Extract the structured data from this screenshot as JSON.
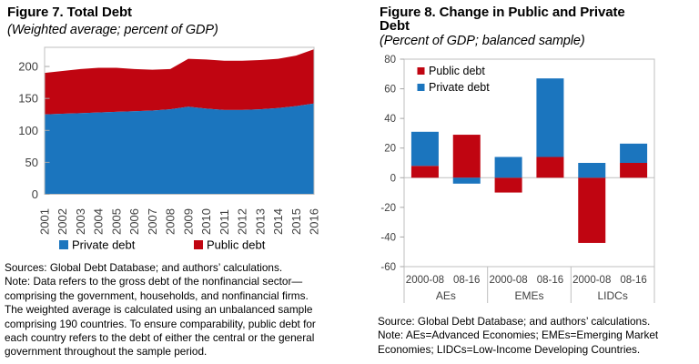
{
  "chart_data": [
    {
      "id": "figure7",
      "type": "area",
      "stacked": true,
      "title": "Figure 7. Total Debt",
      "subtitle": "(Weighted average; percent of GDP)",
      "x": [
        "2001",
        "2002",
        "2003",
        "2004",
        "2005",
        "2006",
        "2007",
        "2008",
        "2009",
        "2010",
        "2011",
        "2012",
        "2013",
        "2014",
        "2015",
        "2016"
      ],
      "series": [
        {
          "name": "Private debt",
          "color": "#1B75BE",
          "values": [
            125,
            126,
            127,
            128,
            129,
            130,
            131,
            133,
            137,
            134,
            132,
            132,
            133,
            135,
            138,
            142
          ]
        },
        {
          "name": "Public debt",
          "color": "#C00511",
          "values": [
            65,
            67,
            69,
            70,
            69,
            66,
            64,
            63,
            75,
            77,
            77,
            77,
            77,
            77,
            79,
            85
          ]
        }
      ],
      "ylim": [
        0,
        230
      ],
      "yticks": [
        0,
        50,
        100,
        150,
        200
      ],
      "grid": false,
      "legend_position": "bottom",
      "source_note": "Sources: Global Debt Database; and authors’ calculations.\nNote: Data refers to the gross debt of the nonfinancial sector—\ncomprising the government, households, and nonfinancial firms.\nThe weighted average is calculated using an unbalanced sample\ncomprising 190 countries. To ensure comparability, public debt for\neach country refers to the debt of either the central or the general\ngovernment throughout the sample period."
    },
    {
      "id": "figure8",
      "type": "bar",
      "stacked": true,
      "title": "Figure 8. Change in Public and Private\nDebt",
      "subtitle": "(Percent of GDP; balanced sample)",
      "groups": [
        "AEs",
        "EMEs",
        "LIDCs"
      ],
      "categories": [
        "2000-08",
        "08-16",
        "2000-08",
        "08-16",
        "2000-08",
        "08-16"
      ],
      "series": [
        {
          "name": "Public debt",
          "color": "#C00511",
          "values": [
            8,
            29,
            -10,
            14,
            -44,
            10
          ]
        },
        {
          "name": "Private debt",
          "color": "#1B75BE",
          "values": [
            23,
            -4,
            14,
            53,
            10,
            13
          ]
        }
      ],
      "ylim": [
        -60,
        80
      ],
      "yticks": [
        80,
        60,
        40,
        20,
        0,
        -20,
        -40,
        -60
      ],
      "grid": false,
      "legend_position": "top-left-inside",
      "source_note": "Source: Global Debt Database; and authors’ calculations.\nNote: AEs=Advanced Economies; EMEs=Emerging Market\nEconomies; LIDCs=Low-Income Developing Countries."
    }
  ]
}
